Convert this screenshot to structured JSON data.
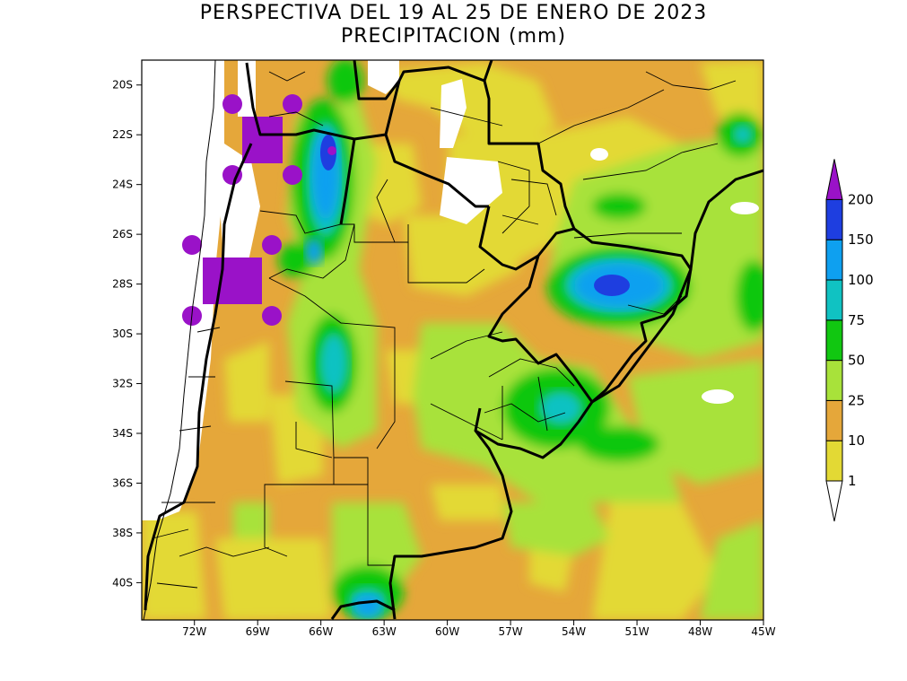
{
  "title": {
    "line1": "PERSPECTIVA DEL 19 AL 25 DE ENERO DE 2023",
    "line2": "PRECIPITACION (mm)"
  },
  "map": {
    "lon_range": [
      -74.5,
      -45
    ],
    "lat_range": [
      -41.5,
      -19
    ],
    "y_ticks": [
      "20S",
      "22S",
      "24S",
      "26S",
      "28S",
      "30S",
      "32S",
      "34S",
      "36S",
      "38S",
      "40S"
    ],
    "x_ticks": [
      "72W",
      "69W",
      "66W",
      "63W",
      "60W",
      "57W",
      "54W",
      "51W",
      "48W",
      "45W"
    ]
  },
  "colorbar": {
    "levels": [
      {
        "label": "1",
        "color": "#e3d934"
      },
      {
        "label": "10",
        "color": "#e5a73a"
      },
      {
        "label": "25",
        "color": "#a8e23a"
      },
      {
        "label": "50",
        "color": "#11c711"
      },
      {
        "label": "75",
        "color": "#10c2c2"
      },
      {
        "label": "100",
        "color": "#0ea0f0"
      },
      {
        "label": "150",
        "color": "#1e3ee0"
      },
      {
        "label": "200",
        "color": "#9a12c8"
      }
    ],
    "top_color": "#9a12c8",
    "bottom_color": "#ffffff"
  }
}
